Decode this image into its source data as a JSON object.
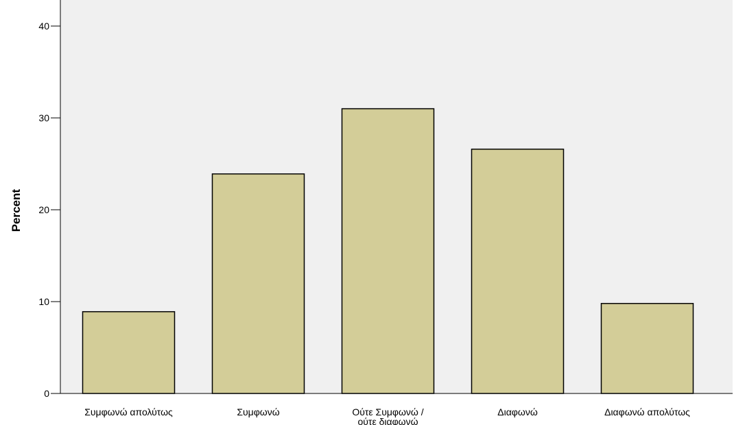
{
  "chart_data": {
    "type": "bar",
    "title": "",
    "xlabel": "",
    "ylabel": "Percent",
    "categories": [
      [
        "Συμφωνώ απολύτως"
      ],
      [
        "Συμφωνώ"
      ],
      [
        "Ούτε Συμφωνώ /",
        "ούτε διαφωνώ"
      ],
      [
        "Διαφωνώ"
      ],
      [
        "Διαφωνώ απολύτως"
      ]
    ],
    "values": [
      8.9,
      23.9,
      31.0,
      26.6,
      9.8
    ],
    "ylim": [
      0,
      40
    ],
    "yticks": [
      0,
      10,
      20,
      30,
      40
    ],
    "grid": false,
    "colors": {
      "bar_fill": "#d3cd98",
      "bar_stroke": "#000000",
      "plot_bg": "#f0f0f0",
      "axis": "#000000"
    }
  }
}
